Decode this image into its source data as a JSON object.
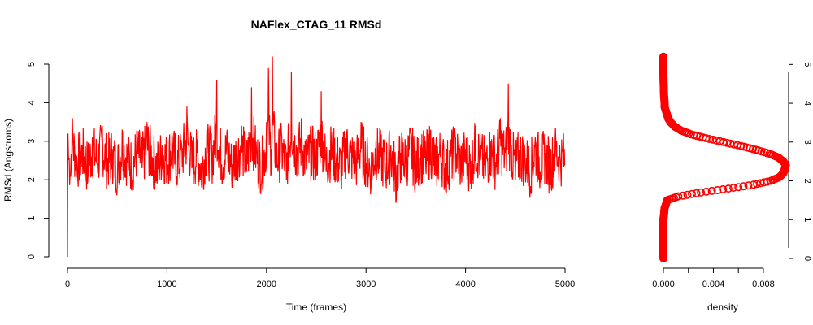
{
  "chart_data": [
    {
      "type": "line",
      "title": "NAFlex_CTAG_11 RMSd",
      "xlabel": "Time (frames)",
      "ylabel": "RMSd (Angstroms)",
      "xlim": [
        0,
        5000
      ],
      "ylim": [
        0,
        5
      ],
      "x_ticks": [
        "0",
        "1000",
        "2000",
        "3000",
        "4000",
        "5000"
      ],
      "y_ticks": [
        "0",
        "1",
        "2",
        "3",
        "4",
        "5"
      ],
      "series_color": "#ff0000",
      "grid": false,
      "series": [
        {
          "x": [
            0,
            2,
            5,
            10,
            25,
            50,
            100,
            150,
            200,
            250,
            300,
            350,
            400,
            450,
            500,
            550,
            600,
            650,
            700,
            750,
            800,
            850,
            900,
            950,
            1000,
            1050,
            1100,
            1150,
            1200,
            1250,
            1300,
            1350,
            1400,
            1450,
            1500,
            1550,
            1600,
            1650,
            1700,
            1750,
            1800,
            1850,
            1900,
            1950,
            2000,
            2020,
            2050,
            2060,
            2100,
            2150,
            2200,
            2250,
            2300,
            2350,
            2400,
            2450,
            2500,
            2550,
            2600,
            2650,
            2700,
            2750,
            2800,
            2850,
            2900,
            2950,
            3000,
            3050,
            3100,
            3150,
            3200,
            3250,
            3300,
            3350,
            3400,
            3450,
            3500,
            3550,
            3600,
            3650,
            3700,
            3750,
            3800,
            3850,
            3900,
            3950,
            4000,
            4050,
            4100,
            4150,
            4200,
            4250,
            4300,
            4350,
            4400,
            4430,
            4450,
            4500,
            4550,
            4600,
            4650,
            4700,
            4750,
            4800,
            4850,
            4900,
            4950,
            5000
          ],
          "values": [
            0.0,
            1.5,
            3.2,
            2.6,
            2.1,
            3.6,
            2.3,
            2.9,
            1.9,
            3.1,
            2.4,
            3.4,
            2.2,
            2.8,
            1.8,
            3.3,
            2.5,
            2.0,
            3.0,
            2.3,
            3.5,
            2.6,
            1.9,
            2.9,
            2.4,
            3.2,
            2.1,
            2.8,
            3.9,
            2.3,
            2.7,
            1.8,
            3.3,
            2.6,
            4.6,
            2.4,
            3.1,
            2.0,
            2.9,
            3.4,
            2.2,
            4.4,
            2.7,
            1.9,
            3.5,
            4.9,
            2.8,
            5.2,
            2.4,
            3.2,
            2.0,
            4.8,
            2.9,
            3.6,
            2.3,
            3.0,
            2.6,
            4.3,
            2.2,
            3.1,
            2.5,
            1.9,
            3.3,
            2.7,
            2.2,
            3.5,
            2.4,
            1.8,
            3.0,
            2.6,
            2.0,
            2.9,
            1.4,
            2.7,
            2.3,
            3.2,
            1.9,
            2.8,
            2.4,
            3.3,
            2.1,
            2.9,
            1.7,
            2.6,
            3.1,
            2.2,
            2.8,
            1.9,
            3.4,
            2.5,
            2.1,
            3.0,
            2.3,
            3.6,
            2.7,
            4.5,
            3.2,
            2.0,
            2.8,
            2.4,
            1.7,
            3.1,
            2.2,
            2.7,
            1.9,
            3.0,
            2.6,
            2.4
          ]
        }
      ]
    },
    {
      "type": "scatter",
      "xlabel": "density",
      "ylabel": "",
      "xlim": [
        0,
        0.0095
      ],
      "ylim": [
        0,
        5.3
      ],
      "x_ticks": [
        "0.000",
        "0.004",
        "0.008"
      ],
      "y_ticks": [
        "0",
        "1",
        "2",
        "3",
        "4",
        "5"
      ],
      "series_color": "#ff0000",
      "grid": false,
      "density_points": {
        "y": [
          0.0,
          0.5,
          1.0,
          1.3,
          1.5,
          1.6,
          1.7,
          1.8,
          1.9,
          2.0,
          2.1,
          2.2,
          2.3,
          2.4,
          2.5,
          2.6,
          2.7,
          2.8,
          2.9,
          3.0,
          3.1,
          3.2,
          3.3,
          3.4,
          3.5,
          3.6,
          3.7,
          3.8,
          3.9,
          4.0,
          4.2,
          4.5,
          4.8,
          5.0,
          5.2
        ],
        "x": [
          0.0,
          0.0,
          0.0,
          0.0001,
          0.0003,
          0.0012,
          0.003,
          0.0052,
          0.0072,
          0.0086,
          0.0093,
          0.0096,
          0.0097,
          0.0098,
          0.0096,
          0.0092,
          0.0085,
          0.0074,
          0.0062,
          0.0048,
          0.0034,
          0.0022,
          0.0014,
          0.0009,
          0.0006,
          0.0004,
          0.0003,
          0.0002,
          0.0001,
          0.0001,
          5e-05,
          2e-05,
          0.0,
          0.0,
          0.0
        ]
      }
    }
  ]
}
